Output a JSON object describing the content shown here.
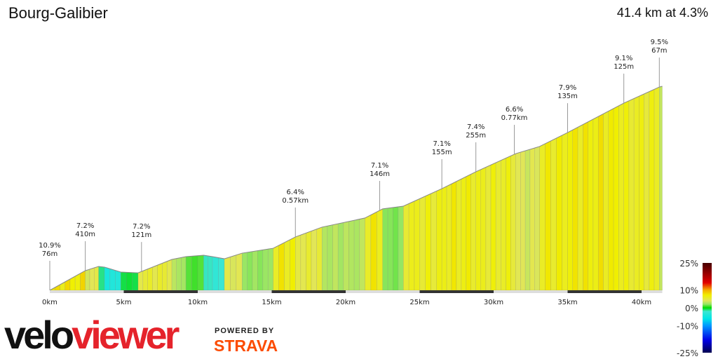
{
  "header": {
    "title": "Bourg-Galibier",
    "summary": "41.4 km at 4.3%"
  },
  "chart_data": {
    "type": "area",
    "title": "Bourg-Galibier",
    "subtitle": "41.4 km at 4.3%",
    "xlabel": "",
    "ylabel": "",
    "x_unit": "km",
    "xlim": [
      0,
      41.4
    ],
    "x_ticks": [
      "0km",
      "5km",
      "10km",
      "15km",
      "20km",
      "25km",
      "30km",
      "35km",
      "40km"
    ],
    "profile_km": [
      0,
      2.4,
      3.3,
      3.7,
      4.8,
      5.97,
      8.25,
      9.2,
      10.4,
      11,
      11.8,
      13,
      15.1,
      16.6,
      18.4,
      21.3,
      22.5,
      23.9,
      26.5,
      28.8,
      31.5,
      33.1,
      35,
      38.8,
      41.2,
      41.4
    ],
    "profile_elevation_gain_m": [
      0,
      172,
      209,
      203,
      160,
      153,
      270,
      295,
      307,
      295,
      276,
      325,
      368,
      467,
      553,
      633,
      713,
      737,
      890,
      1038,
      1197,
      1259,
      1381,
      1639,
      1780,
      1787
    ],
    "annotations": [
      {
        "km": 0,
        "grade": "10.9%",
        "length": "76m"
      },
      {
        "km": 2.4,
        "grade": "7.2%",
        "length": "410m"
      },
      {
        "km": 6.2,
        "grade": "7.2%",
        "length": "121m"
      },
      {
        "km": 16.6,
        "grade": "6.4%",
        "length": "0.57km"
      },
      {
        "km": 22.3,
        "grade": "7.1%",
        "length": "146m"
      },
      {
        "km": 26.5,
        "grade": "7.1%",
        "length": "155m"
      },
      {
        "km": 28.8,
        "grade": "7.4%",
        "length": "255m"
      },
      {
        "km": 31.4,
        "grade": "6.6%",
        "length": "0.77km"
      },
      {
        "km": 35,
        "grade": "7.9%",
        "length": "135m"
      },
      {
        "km": 38.8,
        "grade": "9.1%",
        "length": "125m"
      },
      {
        "km": 41.2,
        "grade": "9.5%",
        "length": "67m"
      }
    ],
    "legend": {
      "placement": "bottom-right",
      "labels": [
        "25%",
        "10%",
        "0%",
        "-10%",
        "-25%"
      ],
      "values": [
        25,
        10,
        0,
        -10,
        -25
      ]
    },
    "grid": false
  },
  "colors": {
    "velo": "#111111",
    "viewer": "#e5232b",
    "strava": "#fc4c02"
  },
  "branding": {
    "logo": "veloviewer",
    "powered_by": "POWERED BY",
    "strava": "STRAVA"
  }
}
